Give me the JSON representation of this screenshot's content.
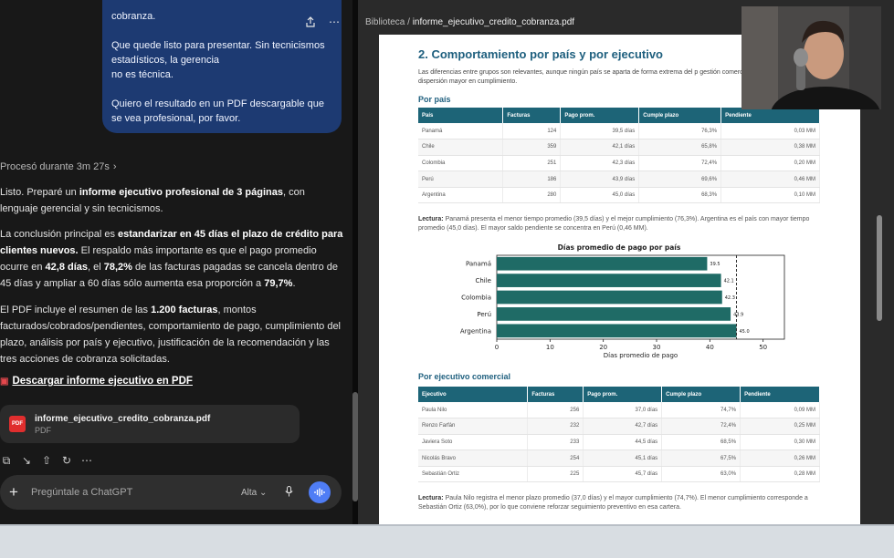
{
  "chat": {
    "bubble": {
      "line0": "cobranza.",
      "para1_l1": "Que quede listo para presentar. Sin tecnicismos",
      "para1_l2": "estadísticos, la gerencia",
      "para1_l3": "no es técnica.",
      "para2_l1": "Quiero el resultado en un PDF descargable que",
      "para2_l2": "se vea profesional, por favor."
    },
    "processed": "Procesó durante 3m 27s",
    "para1": {
      "a": "Listo. Preparé un ",
      "b": "informe ejecutivo profesional de 3 páginas",
      "c": ", con lenguaje gerencial y sin tecnicismos."
    },
    "para2": {
      "a": "La conclusión principal es ",
      "b": "estandarizar en 45 días el plazo de crédito para clientes nuevos.",
      "c": " El respaldo más importante es que el pago promedio ocurre en ",
      "d": "42,8 días",
      "e": ", el ",
      "f": "78,2%",
      "g": " de las facturas pagadas se cancela dentro de 45 días y ampliar a 60 días sólo aumenta esa proporción a ",
      "h": "79,7%",
      "i": "."
    },
    "para3": {
      "a": "El PDF incluye el resumen de las ",
      "b": "1.200 facturas",
      "c": ", montos facturados/cobrados/pendientes, comportamiento de pago, cumplimiento del plazo, análisis por país y ejecutivo, justificación de la recomendación y las tres acciones de cobranza solicitadas."
    },
    "download_link": "Descargar informe ejecutivo en PDF",
    "file": {
      "name": "informe_ejecutivo_credito_cobranza.pdf",
      "type": "PDF",
      "icon_label": "PDF"
    },
    "composer": {
      "placeholder": "Pregúntale a ChatGPT",
      "model": "Alta"
    }
  },
  "preview": {
    "breadcrumb_root": "Biblioteca",
    "breadcrumb_sep": " / ",
    "breadcrumb_file": "informe_ejecutivo_credito_cobranza.pdf",
    "doc": {
      "heading": "2. Comportamiento por país y por ejecutivo",
      "intro": "Las diferencias entre grupos son relevantes, aunque ningún país se aparta de forma extrema del p gestión comercial sí muestra una dispersión mayor en cumplimiento.",
      "country_sub": "Por país",
      "country_headers": [
        "País",
        "Facturas",
        "Pago prom.",
        "Cumple plazo",
        "Pendiente"
      ],
      "country_rows": [
        [
          "Panamá",
          "124",
          "39,5 días",
          "76,3%",
          "0,03 MM"
        ],
        [
          "Chile",
          "359",
          "42,1 días",
          "65,8%",
          "0,38 MM"
        ],
        [
          "Colombia",
          "251",
          "42,3 días",
          "72,4%",
          "0,20 MM"
        ],
        [
          "Perú",
          "186",
          "43,9 días",
          "69,6%",
          "0,46 MM"
        ],
        [
          "Argentina",
          "280",
          "45,0 días",
          "68,3%",
          "0,10 MM"
        ]
      ],
      "lectura1_label": "Lectura:",
      "lectura1": " Panamá presenta el menor tiempo promedio (39,5 días) y el mejor cumplimiento (76,3%). Argentina es el país con mayor tiempo promedio (45,0 días). El mayor saldo pendiente se concentra en Perú (0,46 MM).",
      "exec_sub": "Por ejecutivo comercial",
      "exec_headers": [
        "Ejecutivo",
        "Facturas",
        "Pago prom.",
        "Cumple plazo",
        "Pendiente"
      ],
      "exec_rows": [
        [
          "Paula Nilo",
          "256",
          "37,0 días",
          "74,7%",
          "0,09 MM"
        ],
        [
          "Renzo Farfán",
          "232",
          "42,7 días",
          "72,4%",
          "0,25 MM"
        ],
        [
          "Javiera Soto",
          "233",
          "44,5 días",
          "68,5%",
          "0,30 MM"
        ],
        [
          "Nicolás Bravo",
          "254",
          "45,1 días",
          "67,5%",
          "0,26 MM"
        ],
        [
          "Sebastián Ortiz",
          "225",
          "45,7 días",
          "63,0%",
          "0,28 MM"
        ]
      ],
      "lectura2_label": "Lectura:",
      "lectura2": " Paula Nilo registra el menor plazo promedio (37,0 días) y el mayor cumplimiento (74,7%). El menor cumplimiento corresponde a Sebastián Ortiz (63,0%), por lo que conviene reforzar seguimiento preventivo en esa cartera."
    }
  },
  "colors": {
    "bar": "#1f6b66",
    "accent": "#1e5f7e",
    "table_header": "#1d6477",
    "chat_bubble": "#1d3a72",
    "voice_button": "#4f7df5"
  },
  "chart_data": {
    "type": "bar",
    "orientation": "horizontal",
    "title": "Días promedio de pago por país",
    "xlabel": "Días promedio de pago",
    "ylabel": "",
    "categories": [
      "Panamá",
      "Chile",
      "Colombia",
      "Perú",
      "Argentina"
    ],
    "values": [
      39.5,
      42.1,
      42.3,
      43.9,
      45.0
    ],
    "value_labels": [
      "39.5",
      "42.1",
      "42.3",
      "43.9",
      "45.0"
    ],
    "xlim": [
      0,
      54
    ],
    "xticks": [
      0,
      10,
      20,
      30,
      40,
      50
    ],
    "reference_line": 45,
    "grid": false
  }
}
